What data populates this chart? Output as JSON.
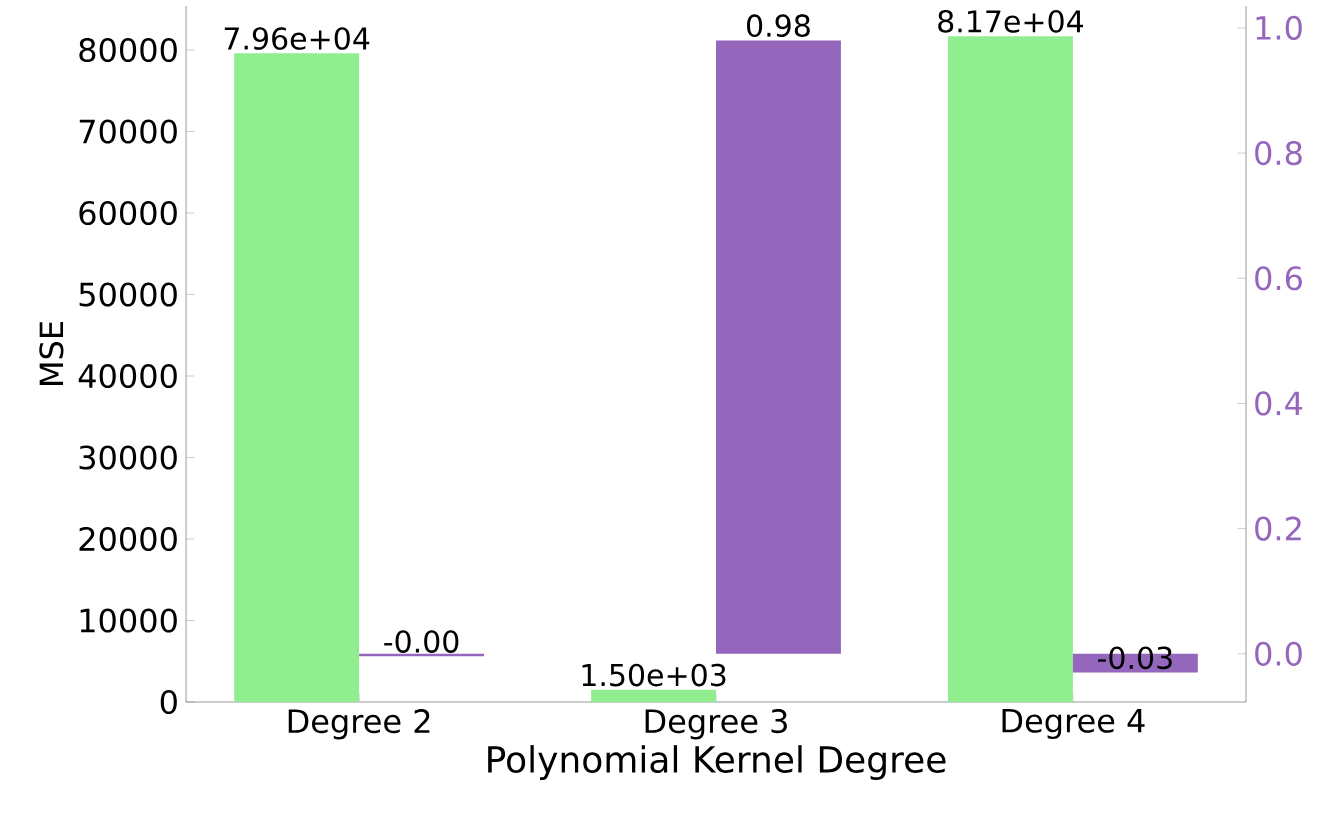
{
  "chart_data": {
    "type": "bar",
    "xlabel": "Polynomial Kernel Degree",
    "ylabel": "MSE",
    "categories": [
      "Degree 2",
      "Degree 3",
      "Degree 4"
    ],
    "series": [
      {
        "color": "#90ee90",
        "values": [
          79600,
          1500,
          81700
        ],
        "value_labels": [
          "7.96e+04",
          "1.50e+03",
          "8.17e+04"
        ]
      },
      {
        "color": "#9467bd",
        "axis": "y2",
        "values": [
          -0.004,
          0.98,
          -0.03
        ],
        "value_labels": [
          "-0.00",
          "0.98",
          "-0.03"
        ]
      }
    ],
    "ylim": [
      0,
      85400
    ],
    "yticks": [
      0,
      10000,
      20000,
      30000,
      40000,
      50000,
      60000,
      70000,
      80000
    ],
    "y2lim": [
      -0.077,
      1.035
    ],
    "y2ticks": [
      {
        "value": 0,
        "label": "0.0"
      },
      {
        "value": 0.2,
        "label": "0.2"
      },
      {
        "value": 0.4,
        "label": "0.4"
      },
      {
        "value": 0.6,
        "label": "0.6"
      },
      {
        "value": 0.8,
        "label": "0.8"
      },
      {
        "value": 1,
        "label": "1.0"
      }
    ],
    "grid": false
  }
}
